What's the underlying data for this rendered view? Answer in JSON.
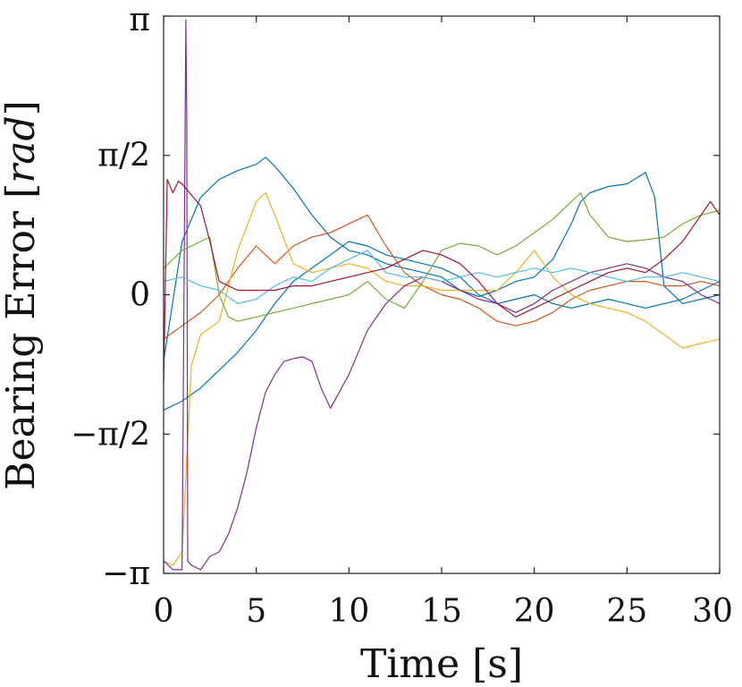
{
  "chart_data": {
    "type": "line",
    "title": "",
    "xlabel": "Time [s]",
    "ylabel_prefix": "Bearing Error [",
    "ylabel_unit": "rad",
    "ylabel_suffix": "]",
    "xlim": [
      0,
      30
    ],
    "ylim": [
      -3.14159,
      3.14159
    ],
    "grid": false,
    "x_ticks": [
      {
        "value": 0,
        "label": "0"
      },
      {
        "value": 5,
        "label": "5"
      },
      {
        "value": 10,
        "label": "10"
      },
      {
        "value": 15,
        "label": "15"
      },
      {
        "value": 20,
        "label": "20"
      },
      {
        "value": 25,
        "label": "25"
      },
      {
        "value": 30,
        "label": "30"
      }
    ],
    "y_ticks": [
      {
        "value": -3.14159,
        "label": "−π"
      },
      {
        "value": -1.5708,
        "label": "−π/2"
      },
      {
        "value": 0,
        "label": "0"
      },
      {
        "value": 1.5708,
        "label": "π/2"
      },
      {
        "value": 3.14159,
        "label": "π"
      }
    ],
    "series": [
      {
        "name": "series-1",
        "color": "#0072BD",
        "x": [
          0,
          1,
          2,
          3,
          4,
          5,
          5.5,
          6,
          7,
          8,
          9,
          10,
          11,
          12,
          13,
          14,
          15,
          16,
          17,
          18,
          19,
          20,
          21,
          22,
          22.5,
          23,
          24,
          25,
          26,
          26.5,
          27,
          28,
          29,
          30
        ],
        "y": [
          -0.75,
          0.6,
          1.1,
          1.3,
          1.4,
          1.47,
          1.55,
          1.45,
          1.2,
          0.9,
          0.65,
          0.5,
          0.45,
          0.35,
          0.3,
          0.25,
          0.2,
          0.05,
          -0.02,
          0.05,
          0.15,
          0.2,
          0.4,
          0.8,
          1.05,
          1.15,
          1.22,
          1.25,
          1.38,
          1.1,
          0.1,
          -0.1,
          -0.05,
          0.0
        ]
      },
      {
        "name": "series-2",
        "color": "#0072BD",
        "x": [
          0,
          1,
          2,
          3,
          4,
          5,
          6,
          7,
          8,
          9,
          10,
          11,
          12,
          13,
          14,
          15,
          16,
          17,
          18,
          19,
          20,
          21,
          22,
          23,
          24,
          25,
          26,
          27,
          28,
          29,
          30
        ],
        "y": [
          -1.3,
          -1.2,
          -1.05,
          -0.85,
          -0.65,
          -0.4,
          -0.1,
          0.15,
          0.3,
          0.45,
          0.6,
          0.55,
          0.45,
          0.4,
          0.35,
          0.3,
          0.2,
          0.0,
          -0.1,
          -0.05,
          0.0,
          -0.1,
          -0.15,
          -0.1,
          -0.05,
          -0.1,
          -0.15,
          -0.1,
          -0.05,
          0.05,
          0.15
        ]
      },
      {
        "name": "series-3",
        "color": "#D95319",
        "x": [
          0,
          1,
          2,
          3,
          4,
          5,
          6,
          7,
          8,
          9,
          10,
          11,
          12,
          13,
          14,
          15,
          16,
          17,
          18,
          19,
          20,
          21,
          22,
          23,
          24,
          25,
          26,
          27,
          28,
          29,
          30
        ],
        "y": [
          -0.5,
          -0.35,
          -0.2,
          0.0,
          0.3,
          0.55,
          0.35,
          0.55,
          0.65,
          0.7,
          0.8,
          0.9,
          0.55,
          0.25,
          0.1,
          0.0,
          -0.05,
          -0.15,
          -0.3,
          -0.35,
          -0.3,
          -0.2,
          -0.05,
          0.05,
          0.1,
          0.15,
          0.15,
          0.1,
          0.1,
          0.15,
          0.1
        ]
      },
      {
        "name": "series-4",
        "color": "#EDB120",
        "x": [
          0,
          0.5,
          1,
          1.5,
          2,
          3,
          4,
          5,
          5.5,
          6,
          7,
          8,
          9,
          10,
          11,
          12,
          13,
          14,
          15,
          16,
          17,
          18,
          19,
          20,
          21,
          22,
          23,
          24,
          25,
          26,
          27,
          28,
          29,
          30
        ],
        "y": [
          -3.0,
          -3.05,
          -2.9,
          -0.8,
          -0.45,
          -0.3,
          0.5,
          1.05,
          1.15,
          0.9,
          0.35,
          0.25,
          0.3,
          0.35,
          0.3,
          0.15,
          0.1,
          0.1,
          0.05,
          0.05,
          0.05,
          0.05,
          0.25,
          0.5,
          0.2,
          0.0,
          -0.1,
          -0.15,
          -0.2,
          -0.3,
          -0.45,
          -0.6,
          -0.55,
          -0.5
        ]
      },
      {
        "name": "series-5",
        "color": "#7E2F8E",
        "x": [
          0,
          0.5,
          1,
          1.2,
          1.25,
          1.3,
          1.5,
          2,
          2.5,
          3,
          3.5,
          4,
          4.5,
          5,
          5.5,
          6,
          6.5,
          7,
          7.5,
          8,
          8.5,
          9,
          10,
          11,
          12,
          13,
          14,
          15,
          16,
          17,
          18,
          19,
          20,
          21,
          22,
          23,
          24,
          25,
          26,
          27,
          28,
          29,
          30
        ],
        "y": [
          -3.0,
          -3.1,
          -3.1,
          3.1,
          2.0,
          -3.0,
          -3.05,
          -3.1,
          -2.95,
          -2.9,
          -2.7,
          -2.4,
          -2.0,
          -1.5,
          -1.1,
          -0.9,
          -0.75,
          -0.72,
          -0.7,
          -0.75,
          -1.05,
          -1.28,
          -0.9,
          -0.4,
          -0.1,
          0.1,
          0.2,
          0.15,
          0.05,
          -0.05,
          -0.1,
          -0.2,
          -0.1,
          0.05,
          0.15,
          0.25,
          0.3,
          0.35,
          0.3,
          0.2,
          0.15,
          0.0,
          -0.1
        ]
      },
      {
        "name": "series-6",
        "color": "#77AC30",
        "x": [
          0,
          1,
          2,
          2.5,
          3,
          3.5,
          4,
          5,
          6,
          7,
          8,
          9,
          10,
          11,
          12,
          13,
          14,
          15,
          16,
          17,
          18,
          19,
          20,
          21,
          22,
          22.5,
          23,
          24,
          25,
          26,
          27,
          28,
          29,
          30
        ],
        "y": [
          0.3,
          0.5,
          0.6,
          0.65,
          0.0,
          -0.25,
          -0.3,
          -0.25,
          -0.2,
          -0.15,
          -0.1,
          -0.05,
          0.0,
          0.15,
          -0.05,
          -0.15,
          0.15,
          0.5,
          0.58,
          0.55,
          0.45,
          0.55,
          0.7,
          0.85,
          1.05,
          1.15,
          0.9,
          0.65,
          0.6,
          0.62,
          0.65,
          0.8,
          0.9,
          0.95
        ]
      },
      {
        "name": "series-7",
        "color": "#4DBEEE",
        "x": [
          0,
          1,
          2,
          3,
          4,
          5,
          6,
          7,
          8,
          9,
          10,
          11,
          12,
          13,
          14,
          15,
          16,
          17,
          18,
          19,
          20,
          21,
          22,
          23,
          24,
          25,
          26,
          27,
          28,
          29,
          30
        ],
        "y": [
          0.15,
          0.2,
          0.1,
          0.05,
          -0.1,
          -0.05,
          0.1,
          0.2,
          0.15,
          0.3,
          0.4,
          0.5,
          0.25,
          0.2,
          0.2,
          0.15,
          0.2,
          0.25,
          0.2,
          0.25,
          0.3,
          0.25,
          0.3,
          0.25,
          0.2,
          0.15,
          0.2,
          0.2,
          0.25,
          0.2,
          0.15
        ]
      },
      {
        "name": "series-8",
        "color": "#A2142F",
        "x": [
          0,
          0.2,
          0.5,
          0.8,
          1,
          2,
          2.5,
          3,
          4,
          5,
          6,
          7,
          8,
          9,
          10,
          11,
          12,
          13,
          14,
          15,
          16,
          17,
          18,
          19,
          20,
          21,
          22,
          23,
          24,
          25,
          26,
          27,
          28,
          29,
          29.5,
          30
        ],
        "y": [
          -1.0,
          1.3,
          1.15,
          1.28,
          1.25,
          1.0,
          0.6,
          0.15,
          0.05,
          0.05,
          0.05,
          0.1,
          0.1,
          0.15,
          0.2,
          0.25,
          0.3,
          0.4,
          0.5,
          0.45,
          0.35,
          0.15,
          -0.1,
          -0.25,
          -0.15,
          -0.05,
          0.05,
          0.15,
          0.25,
          0.3,
          0.25,
          0.4,
          0.6,
          0.9,
          1.05,
          0.9
        ]
      }
    ]
  }
}
